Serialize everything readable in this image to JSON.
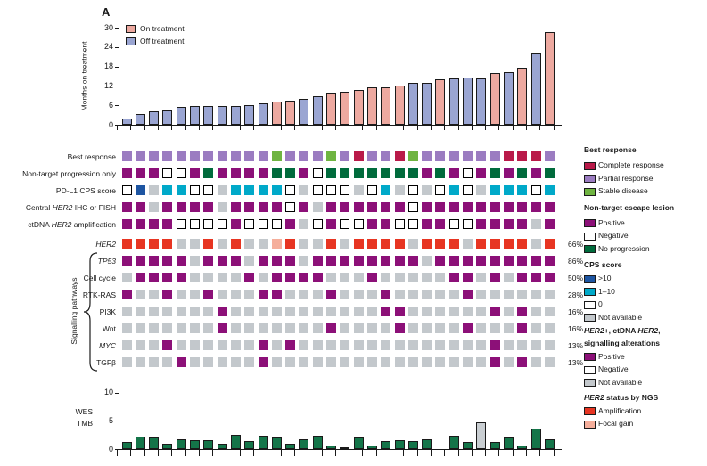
{
  "panel_label": "A",
  "signalling_pathways_label": "Signalling pathways",
  "palette": {
    "on_treatment": "#eda9a0",
    "off_treatment": "#9aa5d2",
    "bar_outline": "#1a1a1a",
    "crimson": "#b91a49",
    "purple": "#9b7cc1",
    "green": "#6fb441",
    "magenta": "#8c1078",
    "white": "#ffffff",
    "darkgreen": "#006b3c",
    "blue": "#1d55a2",
    "teal": "#00a9c9",
    "gray": "#c3c8cc",
    "red": "#e73522",
    "salmon": "#f5ae9b",
    "tmb_green": "#147549",
    "tmb_gray": "#c9ced2"
  },
  "chart_data": [
    {
      "type": "bar",
      "name": "months-on-treatment",
      "ylabel": "Months on treatment",
      "yticks": [
        0,
        6,
        12,
        18,
        24,
        30
      ],
      "ylim": [
        0,
        30
      ],
      "n_cols": 32,
      "values": [
        2.0,
        3.3,
        4.0,
        4.4,
        5.5,
        5.8,
        5.8,
        5.8,
        5.8,
        6.0,
        6.5,
        7.2,
        7.5,
        8.0,
        8.8,
        9.8,
        10.2,
        10.8,
        11.5,
        11.5,
        12.0,
        12.8,
        13.0,
        14.0,
        14.3,
        14.5,
        14.3,
        16.0,
        16.3,
        17.6,
        22.0,
        28.5
      ],
      "status": [
        "off",
        "off",
        "off",
        "off",
        "off",
        "off",
        "off",
        "off",
        "off",
        "off",
        "off",
        "on",
        "on",
        "off",
        "off",
        "on",
        "on",
        "on",
        "on",
        "on",
        "on",
        "off",
        "off",
        "on",
        "off",
        "off",
        "off",
        "on",
        "off",
        "on",
        "off",
        "on"
      ],
      "legend": [
        {
          "label": "On treatment",
          "color_key": "on_treatment"
        },
        {
          "label": "Off treatment",
          "color_key": "off_treatment"
        }
      ]
    },
    {
      "type": "heatmap",
      "name": "oncoprint",
      "n_cols": 32,
      "rows": [
        {
          "parts": [
            {
              "t": "Best response",
              "i": 0
            }
          ],
          "pct": "",
          "cells": [
            "purple",
            "purple",
            "purple",
            "purple",
            "purple",
            "purple",
            "purple",
            "purple",
            "purple",
            "purple",
            "purple",
            "green",
            "purple",
            "purple",
            "purple",
            "green",
            "purple",
            "crimson",
            "purple",
            "purple",
            "crimson",
            "green",
            "purple",
            "purple",
            "purple",
            "purple",
            "purple",
            "purple",
            "crimson",
            "crimson",
            "crimson",
            "purple"
          ]
        },
        {
          "parts": [
            {
              "t": "Non-target progression only",
              "i": 0
            }
          ],
          "pct": "",
          "cells": [
            "magenta",
            "magenta",
            "magenta",
            "white",
            "white",
            "magenta",
            "darkgreen",
            "magenta",
            "magenta",
            "magenta",
            "magenta",
            "darkgreen",
            "darkgreen",
            "magenta",
            "white",
            "darkgreen",
            "darkgreen",
            "darkgreen",
            "darkgreen",
            "darkgreen",
            "darkgreen",
            "darkgreen",
            "magenta",
            "darkgreen",
            "magenta",
            "white",
            "magenta",
            "darkgreen",
            "magenta",
            "darkgreen",
            "magenta",
            "darkgreen"
          ]
        },
        {
          "parts": [
            {
              "t": "PD-L1 CPS score",
              "i": 0
            }
          ],
          "pct": "",
          "cells": [
            "white",
            "blue",
            "gray",
            "teal",
            "teal",
            "white",
            "white",
            "gray",
            "teal",
            "teal",
            "teal",
            "teal",
            "white",
            "gray",
            "white",
            "white",
            "white",
            "gray",
            "white",
            "teal",
            "gray",
            "white",
            "gray",
            "white",
            "teal",
            "white",
            "gray",
            "teal",
            "teal",
            "teal",
            "white",
            "teal"
          ]
        },
        {
          "parts": [
            {
              "t": "Central ",
              "i": 0
            },
            {
              "t": "HER2",
              "i": 1
            },
            {
              "t": " IHC or FISH",
              "i": 0
            }
          ],
          "pct": "",
          "cells": [
            "magenta",
            "magenta",
            "gray",
            "magenta",
            "magenta",
            "magenta",
            "magenta",
            "gray",
            "magenta",
            "magenta",
            "magenta",
            "magenta",
            "white",
            "magenta",
            "gray",
            "magenta",
            "magenta",
            "magenta",
            "magenta",
            "magenta",
            "magenta",
            "white",
            "magenta",
            "magenta",
            "magenta",
            "magenta",
            "magenta",
            "magenta",
            "magenta",
            "magenta",
            "magenta",
            "magenta"
          ]
        },
        {
          "parts": [
            {
              "t": "ctDNA ",
              "i": 0
            },
            {
              "t": "HER2",
              "i": 1
            },
            {
              "t": " amplification",
              "i": 0
            }
          ],
          "pct": "",
          "cells": [
            "magenta",
            "magenta",
            "magenta",
            "magenta",
            "white",
            "white",
            "white",
            "white",
            "magenta",
            "white",
            "white",
            "white",
            "magenta",
            "gray",
            "white",
            "magenta",
            "white",
            "white",
            "magenta",
            "magenta",
            "white",
            "white",
            "magenta",
            "magenta",
            "white",
            "white",
            "magenta",
            "magenta",
            "magenta",
            "magenta",
            "gray",
            "magenta"
          ]
        },
        {
          "parts": [
            {
              "t": "HER2",
              "i": 1
            }
          ],
          "pct": "66%",
          "cells": [
            "red",
            "red",
            "red",
            "red",
            "gray",
            "gray",
            "red",
            "gray",
            "red",
            "gray",
            "gray",
            "salmon",
            "red",
            "gray",
            "gray",
            "red",
            "gray",
            "red",
            "red",
            "red",
            "red",
            "gray",
            "red",
            "red",
            "red",
            "gray",
            "red",
            "red",
            "red",
            "red",
            "gray",
            "red"
          ]
        },
        {
          "parts": [
            {
              "t": "TP53",
              "i": 1
            }
          ],
          "pct": "86%",
          "cells": [
            "magenta",
            "magenta",
            "magenta",
            "magenta",
            "magenta",
            "gray",
            "magenta",
            "magenta",
            "magenta",
            "gray",
            "magenta",
            "magenta",
            "magenta",
            "gray",
            "magenta",
            "magenta",
            "magenta",
            "magenta",
            "magenta",
            "magenta",
            "magenta",
            "magenta",
            "gray",
            "magenta",
            "magenta",
            "magenta",
            "magenta",
            "magenta",
            "magenta",
            "magenta",
            "magenta",
            "magenta"
          ]
        },
        {
          "parts": [
            {
              "t": "Cell cycle",
              "i": 0
            }
          ],
          "pct": "50%",
          "cells": [
            "gray",
            "magenta",
            "magenta",
            "magenta",
            "magenta",
            "gray",
            "gray",
            "gray",
            "gray",
            "magenta",
            "gray",
            "magenta",
            "magenta",
            "magenta",
            "magenta",
            "gray",
            "gray",
            "gray",
            "magenta",
            "gray",
            "gray",
            "gray",
            "gray",
            "gray",
            "magenta",
            "magenta",
            "gray",
            "magenta",
            "gray",
            "magenta",
            "magenta",
            "magenta"
          ]
        },
        {
          "parts": [
            {
              "t": "RTK-RAS",
              "i": 0
            }
          ],
          "pct": "28%",
          "cells": [
            "magenta",
            "gray",
            "gray",
            "magenta",
            "gray",
            "gray",
            "magenta",
            "gray",
            "gray",
            "gray",
            "magenta",
            "magenta",
            "gray",
            "gray",
            "gray",
            "magenta",
            "gray",
            "gray",
            "gray",
            "magenta",
            "gray",
            "gray",
            "gray",
            "gray",
            "gray",
            "magenta",
            "gray",
            "gray",
            "gray",
            "gray",
            "gray",
            "gray"
          ]
        },
        {
          "parts": [
            {
              "t": "PI3K",
              "i": 0
            }
          ],
          "pct": "16%",
          "cells": [
            "gray",
            "gray",
            "gray",
            "gray",
            "gray",
            "gray",
            "gray",
            "magenta",
            "gray",
            "gray",
            "gray",
            "gray",
            "gray",
            "gray",
            "gray",
            "gray",
            "gray",
            "gray",
            "gray",
            "magenta",
            "magenta",
            "gray",
            "gray",
            "gray",
            "gray",
            "gray",
            "gray",
            "magenta",
            "gray",
            "magenta",
            "gray",
            "gray"
          ]
        },
        {
          "parts": [
            {
              "t": "Wnt",
              "i": 0
            }
          ],
          "pct": "16%",
          "cells": [
            "gray",
            "gray",
            "gray",
            "gray",
            "gray",
            "gray",
            "gray",
            "magenta",
            "gray",
            "gray",
            "gray",
            "gray",
            "gray",
            "gray",
            "gray",
            "magenta",
            "gray",
            "gray",
            "gray",
            "gray",
            "magenta",
            "gray",
            "gray",
            "gray",
            "gray",
            "magenta",
            "gray",
            "gray",
            "gray",
            "magenta",
            "gray",
            "gray"
          ]
        },
        {
          "parts": [
            {
              "t": "MYC",
              "i": 1
            }
          ],
          "pct": "13%",
          "cells": [
            "gray",
            "gray",
            "gray",
            "magenta",
            "gray",
            "gray",
            "gray",
            "gray",
            "gray",
            "gray",
            "magenta",
            "gray",
            "magenta",
            "gray",
            "gray",
            "gray",
            "gray",
            "gray",
            "gray",
            "gray",
            "gray",
            "gray",
            "gray",
            "gray",
            "gray",
            "gray",
            "gray",
            "magenta",
            "gray",
            "gray",
            "gray",
            "gray"
          ]
        },
        {
          "parts": [
            {
              "t": "TGFβ",
              "i": 0
            }
          ],
          "pct": "13%",
          "cells": [
            "gray",
            "gray",
            "gray",
            "gray",
            "magenta",
            "gray",
            "gray",
            "gray",
            "gray",
            "gray",
            "magenta",
            "gray",
            "gray",
            "gray",
            "gray",
            "gray",
            "gray",
            "gray",
            "gray",
            "gray",
            "gray",
            "gray",
            "gray",
            "gray",
            "gray",
            "gray",
            "gray",
            "magenta",
            "gray",
            "magenta",
            "gray",
            "gray"
          ]
        }
      ]
    },
    {
      "type": "bar",
      "name": "wes-tmb",
      "label_lines": [
        "WES",
        "TMB"
      ],
      "yticks": [
        0,
        5,
        10
      ],
      "ylim": [
        0,
        10
      ],
      "n_cols": 32,
      "values": [
        1.2,
        2.2,
        2.0,
        1.0,
        1.7,
        1.5,
        1.5,
        1.0,
        2.5,
        1.4,
        2.3,
        2.0,
        1.0,
        1.8,
        2.3,
        0.7,
        0.3,
        2.0,
        0.7,
        1.4,
        1.5,
        1.4,
        1.7,
        null,
        2.3,
        1.2,
        4.7,
        1.3,
        2.0,
        0.7,
        3.7,
        1.7
      ],
      "color_keys": [
        "tmb_green",
        "tmb_green",
        "tmb_green",
        "tmb_green",
        "tmb_green",
        "tmb_green",
        "tmb_green",
        "tmb_green",
        "tmb_green",
        "tmb_green",
        "tmb_green",
        "tmb_green",
        "tmb_green",
        "tmb_green",
        "tmb_green",
        "tmb_green",
        "tmb_green",
        "tmb_green",
        "tmb_green",
        "tmb_green",
        "tmb_green",
        "tmb_green",
        "tmb_green",
        null,
        "tmb_green",
        "tmb_green",
        "tmb_gray",
        "tmb_green",
        "tmb_green",
        "tmb_green",
        "tmb_green",
        "tmb_green"
      ]
    }
  ],
  "legend": {
    "sections": [
      {
        "title_lines": [
          [
            {
              "t": "Best response",
              "i": 0
            }
          ]
        ],
        "items": [
          {
            "label": "Complete response",
            "color_key": "crimson"
          },
          {
            "label": "Partial response",
            "color_key": "purple"
          },
          {
            "label": "Stable disease",
            "color_key": "green"
          }
        ]
      },
      {
        "title_lines": [
          [
            {
              "t": "Non-target escape lesion",
              "i": 0
            }
          ]
        ],
        "items": [
          {
            "label": "Positive",
            "color_key": "magenta"
          },
          {
            "label": "Negative",
            "color_key": "white"
          },
          {
            "label": "No progression",
            "color_key": "darkgreen"
          }
        ]
      },
      {
        "title_lines": [
          [
            {
              "t": "CPS score",
              "i": 0
            }
          ]
        ],
        "items": [
          {
            "label": ">10",
            "color_key": "blue"
          },
          {
            "label": "1–10",
            "color_key": "teal"
          },
          {
            "label": "0",
            "color_key": "white"
          },
          {
            "label": "Not available",
            "color_key": "gray"
          }
        ]
      },
      {
        "title_lines": [
          [
            {
              "t": "HER2",
              "i": 1
            },
            {
              "t": "+, ctDNA ",
              "i": 0
            },
            {
              "t": "HER2",
              "i": 1
            },
            {
              "t": ",",
              "i": 0
            }
          ],
          [
            {
              "t": "signalling alterations",
              "i": 0
            }
          ]
        ],
        "items": [
          {
            "label": "Positive",
            "color_key": "magenta"
          },
          {
            "label": "Negative",
            "color_key": "white"
          },
          {
            "label": "Not available",
            "color_key": "gray"
          }
        ]
      },
      {
        "title_lines": [
          [
            {
              "t": "HER2",
              "i": 1
            },
            {
              "t": " status by NGS",
              "i": 0
            }
          ]
        ],
        "items": [
          {
            "label": "Amplification",
            "color_key": "red"
          },
          {
            "label": "Focal gain",
            "color_key": "salmon"
          }
        ]
      }
    ]
  }
}
